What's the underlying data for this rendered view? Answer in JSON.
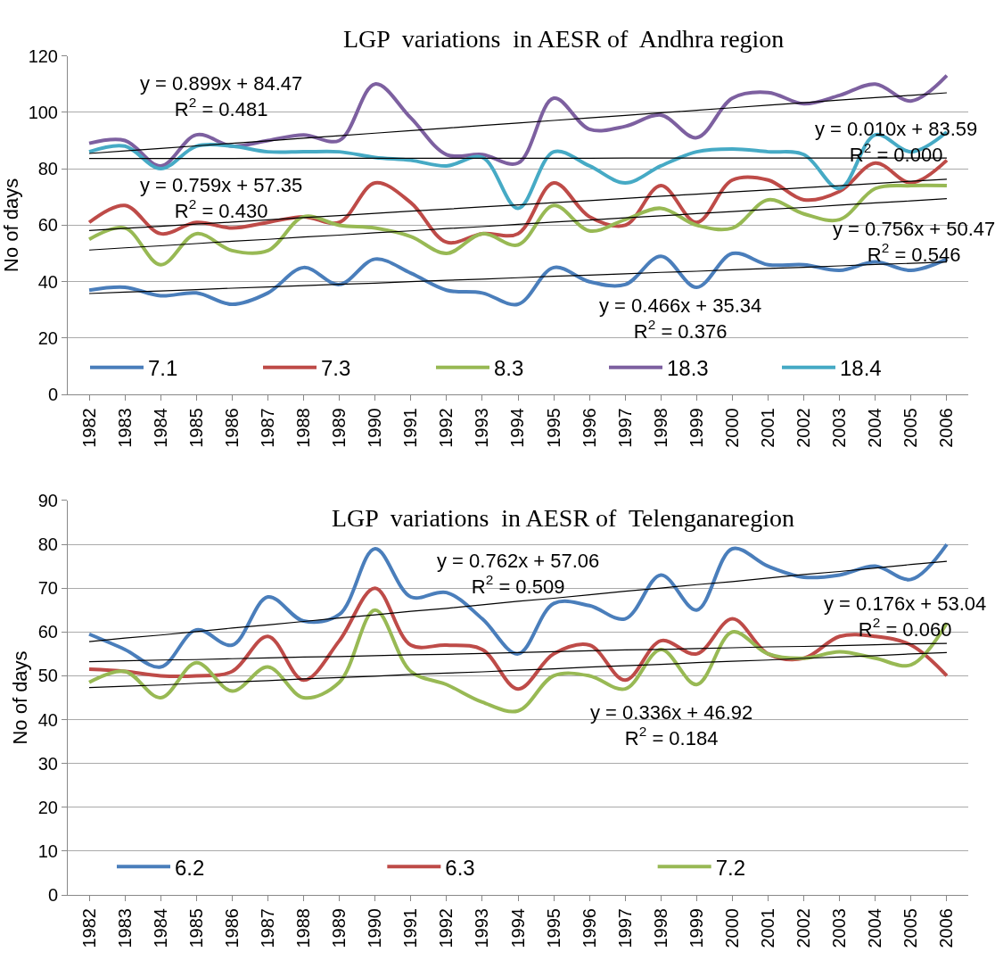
{
  "chart_data": [
    {
      "type": "line",
      "title": "LGP  variations  in AESR of  Andhra region",
      "ylabel": "No of days",
      "categories": [
        "1982",
        "1983",
        "1984",
        "1985",
        "1986",
        "1987",
        "1988",
        "1989",
        "1990",
        "1991",
        "1992",
        "1993",
        "1994",
        "1995",
        "1996",
        "1997",
        "1998",
        "1999",
        "2000",
        "2001",
        "2002",
        "2003",
        "2004",
        "2005",
        "2006"
      ],
      "ylim": [
        0,
        120
      ],
      "yticks": [
        0,
        20,
        40,
        60,
        80,
        100,
        120
      ],
      "grid": "y",
      "legend": "bottom",
      "series": [
        {
          "name": "7.1",
          "color": "#4a7ebb",
          "values": [
            37,
            38,
            35,
            36,
            32,
            36,
            45,
            39,
            48,
            43,
            37,
            36,
            32,
            45,
            40,
            39,
            49,
            38,
            50,
            46,
            46,
            44,
            47,
            44,
            48
          ]
        },
        {
          "name": "7.3",
          "color": "#be4b48",
          "values": [
            61,
            67,
            57,
            61,
            59,
            61,
            63,
            61,
            75,
            68,
            54,
            57,
            57,
            75,
            63,
            60,
            74,
            61,
            76,
            76,
            69,
            72,
            82,
            75,
            83
          ]
        },
        {
          "name": "8.3",
          "color": "#98b954",
          "values": [
            55,
            59,
            46,
            57,
            51,
            51,
            63,
            60,
            59,
            56,
            50,
            57,
            53,
            67,
            58,
            62,
            66,
            60,
            59,
            69,
            64,
            62,
            73,
            74,
            74
          ]
        },
        {
          "name": "18.3",
          "color": "#7d60a0",
          "values": [
            89,
            90,
            81,
            92,
            88,
            90,
            92,
            90,
            110,
            98,
            85,
            85,
            82,
            105,
            94,
            95,
            99,
            91,
            105,
            107,
            103,
            106,
            110,
            104,
            113
          ]
        },
        {
          "name": "18.4",
          "color": "#46aac5",
          "values": [
            86,
            88,
            80,
            88,
            88,
            86,
            86,
            86,
            84,
            83,
            81,
            84,
            66,
            86,
            81,
            75,
            81,
            86,
            87,
            86,
            85,
            73,
            92,
            86,
            93
          ]
        },
        {
          "color": "#000000",
          "values": [
            85.4,
            86.3,
            87.2,
            88.1,
            89.0,
            89.9,
            90.8,
            91.7,
            92.6,
            93.5,
            94.4,
            95.3,
            96.2,
            97.1,
            98.0,
            98.9,
            99.8,
            100.7,
            101.6,
            102.5,
            103.4,
            104.3,
            105.2,
            106.0,
            106.9
          ]
        },
        {
          "color": "#000000",
          "values": [
            83.6,
            83.6,
            83.6,
            83.6,
            83.6,
            83.7,
            83.7,
            83.7,
            83.7,
            83.7,
            83.7,
            83.7,
            83.7,
            83.7,
            83.7,
            83.8,
            83.8,
            83.8,
            83.8,
            83.8,
            83.8,
            83.8,
            83.8,
            83.8,
            83.8
          ]
        },
        {
          "color": "#000000",
          "values": [
            58.1,
            58.9,
            59.6,
            60.4,
            61.1,
            61.9,
            62.7,
            63.4,
            64.2,
            65.0,
            65.7,
            66.5,
            67.2,
            68.0,
            68.7,
            69.5,
            70.3,
            71.0,
            71.8,
            72.5,
            73.3,
            74.0,
            74.8,
            75.6,
            76.3
          ]
        },
        {
          "color": "#000000",
          "values": [
            51.2,
            52.0,
            52.7,
            53.5,
            54.3,
            55.0,
            55.8,
            56.5,
            57.3,
            58.0,
            58.8,
            59.5,
            60.3,
            61.1,
            61.8,
            62.6,
            63.3,
            64.1,
            64.8,
            65.6,
            66.3,
            67.1,
            67.9,
            68.6,
            69.4
          ]
        },
        {
          "color": "#000000",
          "values": [
            35.8,
            36.3,
            36.7,
            37.2,
            37.7,
            38.1,
            38.6,
            39.1,
            39.5,
            40.0,
            40.5,
            40.9,
            41.4,
            41.9,
            42.3,
            42.8,
            43.3,
            43.7,
            44.2,
            44.7,
            45.1,
            45.6,
            46.1,
            46.5,
            47.0
          ]
        }
      ],
      "annotations": [
        "y = 0.899x + 84.47\nR$^{2}$ = 0.481",
        "y = 0.010x + 83.59\nR$^{2}$ = 0.000",
        "y = 0.759x + 57.35\nR$^{2}$ = 0.430",
        "y = 0.756x + 50.47\nR$^{2}$ = 0.546",
        "y = 0.466x + 35.34\nR$^{2}$ = 0.376"
      ]
    },
    {
      "type": "line",
      "title": "LGP  variations  in AESR of  Telenganaregion",
      "ylabel": "No of days",
      "categories": [
        "1982",
        "1983",
        "1984",
        "1985",
        "1986",
        "1987",
        "1988",
        "1989",
        "1990",
        "1991",
        "1992",
        "1993",
        "1994",
        "1995",
        "1996",
        "1997",
        "1998",
        "1999",
        "2000",
        "2001",
        "2002",
        "2003",
        "2004",
        "2005",
        "2006"
      ],
      "ylim": [
        0,
        90
      ],
      "yticks": [
        0,
        10,
        20,
        30,
        40,
        50,
        60,
        70,
        80,
        90
      ],
      "grid": "y",
      "legend": "bottom",
      "series": [
        {
          "name": "6.2",
          "color": "#4a7ebb",
          "values": [
            59.5,
            56,
            52,
            60.5,
            57,
            68,
            62.5,
            64,
            79,
            68,
            69,
            63,
            55,
            66.5,
            66,
            63,
            73,
            65,
            79,
            75,
            72.5,
            73,
            75,
            72,
            80
          ]
        },
        {
          "name": "6.3",
          "color": "#be4b48",
          "values": [
            51.5,
            51,
            50,
            50,
            51,
            59,
            49,
            58,
            70,
            57,
            57,
            56,
            47,
            55,
            57,
            49,
            58,
            55,
            63,
            55,
            54,
            59,
            59,
            57,
            50
          ]
        },
        {
          "name": "7.2",
          "color": "#98b954",
          "values": [
            48.5,
            51,
            45,
            53,
            46.5,
            52,
            45,
            48.5,
            65,
            51,
            48,
            44,
            42,
            50,
            50,
            47,
            56,
            48,
            60,
            55,
            54,
            55.5,
            54,
            52.5,
            62
          ]
        },
        {
          "color": "#000000",
          "values": [
            57.8,
            58.6,
            59.3,
            60.1,
            60.9,
            61.6,
            62.4,
            63.2,
            63.9,
            64.7,
            65.4,
            66.2,
            67.0,
            67.7,
            68.5,
            69.3,
            70.0,
            70.8,
            71.5,
            72.3,
            73.1,
            73.8,
            74.6,
            75.4,
            76.1
          ]
        },
        {
          "color": "#000000",
          "values": [
            53.2,
            53.4,
            53.6,
            53.7,
            53.9,
            54.1,
            54.3,
            54.4,
            54.6,
            54.8,
            54.9,
            55.1,
            55.3,
            55.5,
            55.7,
            55.9,
            56.0,
            56.2,
            56.4,
            56.6,
            56.7,
            56.9,
            57.1,
            57.3,
            57.4
          ]
        },
        {
          "color": "#000000",
          "values": [
            47.3,
            47.6,
            47.9,
            48.3,
            48.6,
            48.9,
            49.3,
            49.6,
            49.9,
            50.3,
            50.6,
            50.9,
            51.3,
            51.6,
            52.0,
            52.3,
            52.6,
            53.0,
            53.3,
            53.6,
            54.0,
            54.3,
            54.6,
            55.0,
            55.3
          ]
        }
      ],
      "annotations": [
        "y = 0.762x + 57.06\nR$^{2}$ = 0.509",
        "y = 0.176x + 53.04\nR$^{2}$ = 0.060",
        "y = 0.336x + 46.92\nR$^{2}$ = 0.184"
      ]
    }
  ]
}
